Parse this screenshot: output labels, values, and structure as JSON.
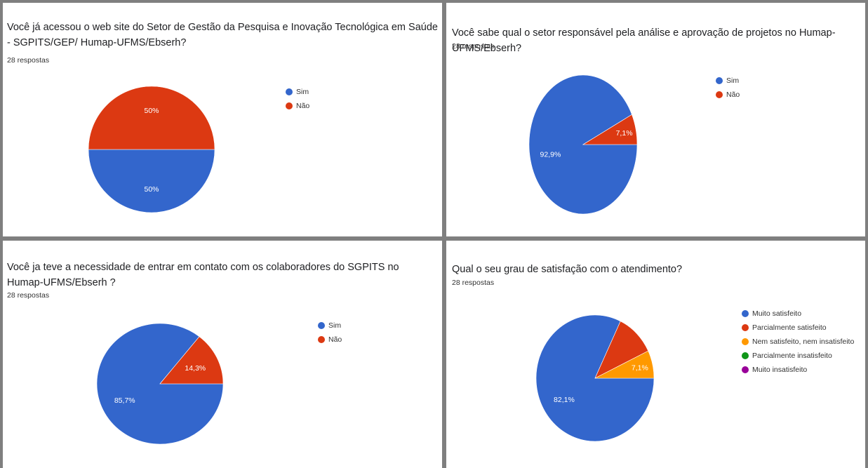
{
  "chart_data": [
    {
      "type": "pie",
      "title": "Você já acessou o web site do Setor de Gestão da Pesquisa e Inovação Tecnológica em Saúde  - SGPITS/GEP/ Humap-UFMS/Ebserh?",
      "subtitle": "28 respostas",
      "legend_position": "right",
      "slices": [
        {
          "label": "Sim",
          "value": 50,
          "display": "50%",
          "color": "#3366cc"
        },
        {
          "label": "Não",
          "value": 50,
          "display": "50%",
          "color": "#dc3912"
        }
      ]
    },
    {
      "type": "pie",
      "title": "Você sabe qual o setor responsável pela análise e aprovação de projetos no  Humap-UFMS/Ebserh?",
      "subtitle": "28 respostas",
      "legend_position": "right",
      "slices": [
        {
          "label": "Sim",
          "value": 92.9,
          "display": "92,9%",
          "color": "#3366cc"
        },
        {
          "label": "Não",
          "value": 7.1,
          "display": "7,1%",
          "color": "#dc3912"
        }
      ]
    },
    {
      "type": "pie",
      "title": "Você ja teve a necessidade de entrar em contato com os colaboradores do SGPITS no Humap-UFMS/Ebserh ?",
      "subtitle": "28 respostas",
      "legend_position": "right",
      "slices": [
        {
          "label": "Sim",
          "value": 85.7,
          "display": "85,7%",
          "color": "#3366cc"
        },
        {
          "label": "Não",
          "value": 14.3,
          "display": "14,3%",
          "color": "#dc3912"
        }
      ]
    },
    {
      "type": "pie",
      "title": "Qual o seu grau de satisfação com o atendimento?",
      "subtitle": "28 respostas",
      "legend_position": "right",
      "slices": [
        {
          "label": "Muito satisfeito",
          "value": 82.1,
          "display": "82,1%",
          "color": "#3366cc"
        },
        {
          "label": "Parcialmente satisfeito",
          "value": 10.8,
          "display": "",
          "color": "#dc3912"
        },
        {
          "label": "Nem satisfeito, nem insatisfeito",
          "value": 7.1,
          "display": "7,1%",
          "color": "#ff9900"
        },
        {
          "label": "Parcialmente insatisfeito",
          "value": 0,
          "display": "",
          "color": "#109618"
        },
        {
          "label": "Muito insatisfeito",
          "value": 0,
          "display": "",
          "color": "#990099"
        }
      ]
    }
  ]
}
